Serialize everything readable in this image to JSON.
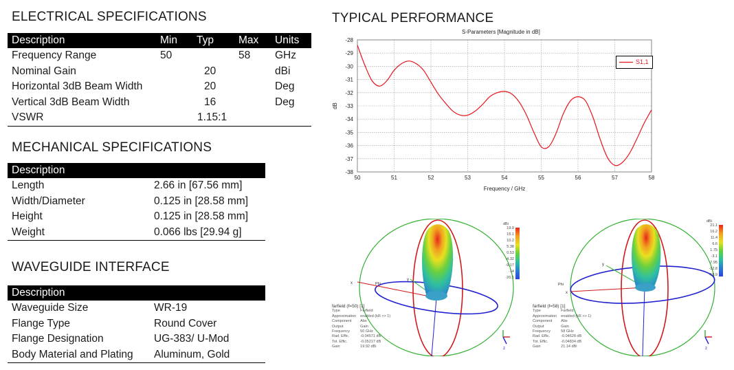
{
  "electrical": {
    "title": "ELECTRICAL SPECIFICATIONS",
    "headers": [
      "Description",
      "Min",
      "Typ",
      "Max",
      "Units"
    ],
    "rows": [
      [
        "Frequency Range",
        "50",
        "",
        "58",
        "GHz"
      ],
      [
        "Nominal Gain",
        "",
        "20",
        "",
        "dBi"
      ],
      [
        "Horizontal 3dB Beam Width",
        "",
        "20",
        "",
        "Deg"
      ],
      [
        "Vertical 3dB Beam Width",
        "",
        "16",
        "",
        "Deg"
      ],
      [
        "VSWR",
        "",
        "1.15:1",
        "",
        ""
      ]
    ]
  },
  "mechanical": {
    "title": "MECHANICAL SPECIFICATIONS",
    "header": "Description",
    "rows": [
      [
        "Length",
        "2.66 in [67.56 mm]"
      ],
      [
        "Width/Diameter",
        "0.125 in [28.58 mm]"
      ],
      [
        "Height",
        "0.125 in [28.58 mm]"
      ],
      [
        "Weight",
        "0.066 lbs [29.94 g]"
      ]
    ]
  },
  "waveguide": {
    "title": "WAVEGUIDE INTERFACE",
    "header": "Description",
    "rows": [
      [
        "Waveguide Size",
        "WR-19"
      ],
      [
        "Flange Type",
        "Round Cover"
      ],
      [
        "Flange Designation",
        "UG-383/ U-Mod"
      ],
      [
        "Body Material and Plating",
        "Aluminum, Gold"
      ]
    ]
  },
  "performance": {
    "title": "TYPICAL PERFORMANCE"
  },
  "chart_data": {
    "type": "line",
    "title": "S-Parameters [Magnitude in dB]",
    "xlabel": "Frequency / GHz",
    "ylabel": "dB",
    "xlim": [
      50,
      58
    ],
    "ylim": [
      -38,
      -28
    ],
    "xticks": [
      "50",
      "51",
      "52",
      "53",
      "54",
      "55",
      "56",
      "57",
      "58"
    ],
    "yticks": [
      "-28",
      "-29",
      "-30",
      "-31",
      "-32",
      "-33",
      "-34",
      "-35",
      "-36",
      "-37",
      "-38"
    ],
    "grid": true,
    "legend_position": "top-right",
    "series": [
      {
        "name": "S1,1",
        "color": "#e8141b",
        "x": [
          50.0,
          50.2,
          50.4,
          50.6,
          50.8,
          51.0,
          51.2,
          51.4,
          51.6,
          51.8,
          52.0,
          52.2,
          52.4,
          52.6,
          52.8,
          53.0,
          53.2,
          53.4,
          53.6,
          53.8,
          54.0,
          54.2,
          54.4,
          54.6,
          54.8,
          55.0,
          55.2,
          55.4,
          55.6,
          55.8,
          56.0,
          56.2,
          56.4,
          56.6,
          56.8,
          57.0,
          57.2,
          57.4,
          57.6,
          57.8,
          58.0
        ],
        "y": [
          -28.4,
          -29.9,
          -31.1,
          -31.5,
          -31.1,
          -30.3,
          -29.8,
          -29.6,
          -29.8,
          -30.3,
          -31.2,
          -32.1,
          -32.8,
          -33.4,
          -33.7,
          -33.7,
          -33.4,
          -32.9,
          -32.3,
          -32.0,
          -31.9,
          -32.1,
          -32.7,
          -33.7,
          -35.0,
          -36.1,
          -36.1,
          -35.1,
          -33.6,
          -32.6,
          -32.3,
          -32.6,
          -33.8,
          -35.5,
          -36.9,
          -37.5,
          -37.3,
          -36.6,
          -35.5,
          -34.3,
          -33.3
        ]
      }
    ]
  },
  "farfield_left": {
    "title": "farfield (f=50) [1]",
    "unit": "dBi",
    "scale": [
      "19.9",
      "15.1",
      "10.2",
      "5.38",
      "0.53",
      "-4.32",
      "-9.17",
      "-14",
      "-20.1"
    ],
    "axis_labels": {
      "x": "x",
      "y": "y",
      "z": "z",
      "phi": "Phi"
    },
    "props": [
      [
        "Type",
        "Farfield"
      ],
      [
        "Approximation",
        "enabled (kR >> 1)"
      ],
      [
        "Component",
        "Abs"
      ],
      [
        "Output",
        "Gain"
      ],
      [
        "Frequency",
        "50 GHz"
      ],
      [
        "Rad. Effic.",
        "-0.04571 dB"
      ],
      [
        "Tot. Effic.",
        "-0.05217 dB"
      ],
      [
        "Gain",
        "19.92 dBi"
      ]
    ]
  },
  "farfield_right": {
    "title": "farfield (f=58) [1]",
    "unit": "dBi",
    "scale": [
      "21.1",
      "16.2",
      "11.4",
      "6.6",
      "1.75",
      "-3.1",
      "-7.95",
      "-12.8",
      "-18.9"
    ],
    "axis_labels": {
      "x": "x",
      "y": "y",
      "z": "z",
      "phi": "Phi"
    },
    "props": [
      [
        "Type",
        "Farfield"
      ],
      [
        "Approximation",
        "enabled (kR >> 1)"
      ],
      [
        "Component",
        "Abs"
      ],
      [
        "Output",
        "Gain"
      ],
      [
        "Frequency",
        "58 GHz"
      ],
      [
        "Rad. Effic.",
        "-0.04628 dB"
      ],
      [
        "Tot. Effic.",
        "-0.04834 dB"
      ],
      [
        "Gain",
        "21.14 dBi"
      ]
    ]
  }
}
